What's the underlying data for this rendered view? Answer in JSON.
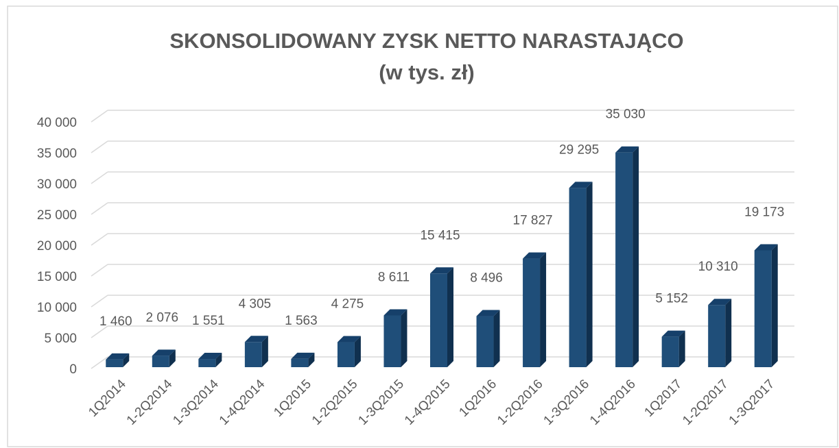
{
  "chart_data": {
    "type": "bar3d",
    "title": "SKONSOLIDOWANY ZYSK NETTO NARASTAJĄCO",
    "subtitle": "(w tys. zł)",
    "categories": [
      "1Q2014",
      "1-2Q2014",
      "1-3Q2014",
      "1-4Q2014",
      "1Q2015",
      "1-2Q2015",
      "1-3Q2015",
      "1-4Q2015",
      "1Q2016",
      "1-2Q2016",
      "1-3Q2016",
      "1-4Q2016",
      "1Q2017",
      "1-2Q2017",
      "1-3Q2017"
    ],
    "values": [
      1460,
      2076,
      1551,
      4305,
      1563,
      4275,
      8611,
      15415,
      8496,
      17827,
      29295,
      35030,
      5152,
      10310,
      19173
    ],
    "value_labels": [
      "1 460",
      "2 076",
      "1 551",
      "4 305",
      "1 563",
      "4 275",
      "8 611",
      "15 415",
      "8 496",
      "17 827",
      "29 295",
      "35 030",
      "5 152",
      "10 310",
      "19 173"
    ],
    "color": "#1f4e79",
    "ylim": [
      0,
      40000
    ],
    "yticks": [
      0,
      {
        "value": 5000,
        "label": "5 000"
      },
      {
        "value": 10000,
        "label": "10 000"
      },
      {
        "value": 15000,
        "label": "15 000"
      },
      {
        "value": 20000,
        "label": "20 000"
      },
      {
        "value": 25000,
        "label": "25 000"
      },
      {
        "value": 30000,
        "label": "30 000"
      },
      {
        "value": 35000,
        "label": "35 000"
      },
      {
        "value": 40000,
        "label": "40 000"
      }
    ],
    "grid": true
  }
}
